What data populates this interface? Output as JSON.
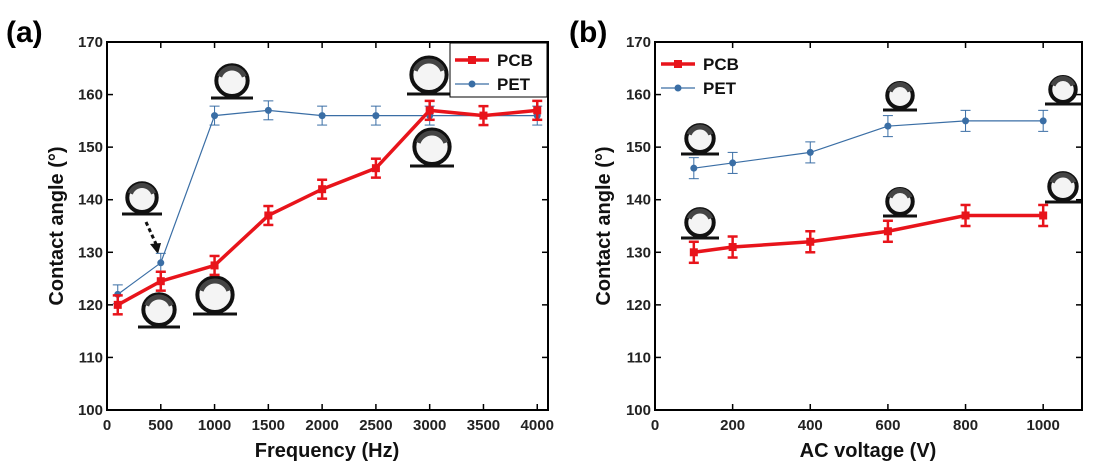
{
  "chart_data": [
    {
      "type": "line",
      "panel_label": "(a)",
      "xlabel": "Frequency (Hz)",
      "ylabel": "Contact angle (°)",
      "xlim": [
        0,
        4100
      ],
      "ylim": [
        100,
        170
      ],
      "xticks": [
        0,
        500,
        1000,
        1500,
        2000,
        2500,
        3000,
        3500,
        4000
      ],
      "yticks": [
        100,
        110,
        120,
        130,
        140,
        150,
        160,
        170
      ],
      "legend_position": "top-right",
      "grid": false,
      "series": [
        {
          "name": "PCB",
          "color": "#e8141b",
          "marker": "square",
          "x": [
            100,
            500,
            1000,
            1500,
            2000,
            2500,
            3000,
            3500,
            4000
          ],
          "y": [
            120,
            124.5,
            127.5,
            137,
            142,
            146,
            157,
            156,
            157
          ],
          "err": [
            1.8,
            1.8,
            1.8,
            1.8,
            1.8,
            1.8,
            1.8,
            1.8,
            1.8
          ]
        },
        {
          "name": "PET",
          "color": "#3a6ea5",
          "marker": "circle",
          "x": [
            100,
            500,
            1000,
            1500,
            2000,
            2500,
            3000,
            3500,
            4000
          ],
          "y": [
            122,
            128,
            156,
            157,
            156,
            156,
            156,
            156,
            156
          ],
          "err": [
            1.8,
            1.8,
            1.8,
            1.8,
            1.8,
            1.8,
            1.8,
            1.8,
            1.8
          ]
        }
      ]
    },
    {
      "type": "line",
      "panel_label": "(b)",
      "xlabel": "AC voltage (V)",
      "ylabel": "Contact angle (°)",
      "xlim": [
        0,
        1100
      ],
      "ylim": [
        100,
        170
      ],
      "xticks": [
        0,
        200,
        400,
        600,
        800,
        1000
      ],
      "yticks": [
        100,
        110,
        120,
        130,
        140,
        150,
        160,
        170
      ],
      "legend_position": "top-left",
      "grid": false,
      "series": [
        {
          "name": "PCB",
          "color": "#e8141b",
          "marker": "square",
          "x": [
            100,
            200,
            400,
            600,
            800,
            1000
          ],
          "y": [
            130,
            131,
            132,
            134,
            137,
            137
          ],
          "err": [
            2,
            2,
            2,
            2,
            2,
            2
          ]
        },
        {
          "name": "PET",
          "color": "#3a6ea5",
          "marker": "circle",
          "x": [
            100,
            200,
            400,
            600,
            800,
            1000
          ],
          "y": [
            146,
            147,
            149,
            154,
            155,
            155
          ],
          "err": [
            2,
            2,
            2,
            2,
            2,
            2
          ]
        }
      ]
    }
  ]
}
